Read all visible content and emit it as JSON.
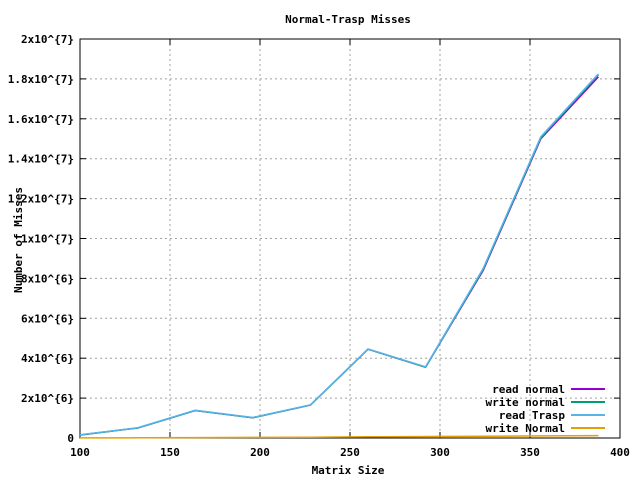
{
  "chart_data": {
    "type": "line",
    "title": "Normal-Trasp Misses",
    "xlabel": "Matrix Size",
    "ylabel": "Number of Misses",
    "xlim": [
      100,
      400
    ],
    "ylim": [
      0,
      20000000
    ],
    "x_ticks": [
      100,
      150,
      200,
      250,
      300,
      350,
      400
    ],
    "y_ticks": [
      {
        "value": 0,
        "label": "0"
      },
      {
        "value": 2000000,
        "label": "2x10^{6}"
      },
      {
        "value": 4000000,
        "label": "4x10^{6}"
      },
      {
        "value": 6000000,
        "label": "6x10^{6}"
      },
      {
        "value": 8000000,
        "label": "8x10^{6}"
      },
      {
        "value": 10000000,
        "label": "1x10^{7}"
      },
      {
        "value": 12000000,
        "label": "1.2x10^{7}"
      },
      {
        "value": 14000000,
        "label": "1.4x10^{7}"
      },
      {
        "value": 16000000,
        "label": "1.6x10^{7}"
      },
      {
        "value": 18000000,
        "label": "1.8x10^{7}"
      },
      {
        "value": 20000000,
        "label": "2x10^{7}"
      }
    ],
    "grid": true,
    "legend_position": "bottom-right",
    "series": [
      {
        "name": "read normal",
        "color": "#9400d3",
        "x": [
          100,
          132,
          164,
          196,
          228,
          244,
          260,
          292,
          324,
          356,
          388
        ],
        "y": [
          150000,
          500000,
          1380000,
          1020000,
          1650000,
          3050000,
          4450000,
          3550000,
          8400000,
          15000000,
          18100000
        ]
      },
      {
        "name": "write normal",
        "color": "#009e73",
        "x": [
          100,
          132,
          164,
          196,
          228,
          244,
          260,
          292,
          324,
          356,
          388
        ],
        "y": [
          150000,
          500000,
          1380000,
          1020000,
          1650000,
          3050000,
          4450000,
          3550000,
          8450000,
          15050000,
          18200000
        ]
      },
      {
        "name": "read Trasp",
        "color": "#56b4e9",
        "x": [
          100,
          132,
          164,
          196,
          228,
          244,
          260,
          292,
          324,
          356,
          388
        ],
        "y": [
          160000,
          510000,
          1390000,
          1030000,
          1660000,
          3060000,
          4460000,
          3570000,
          8500000,
          15100000,
          18250000
        ]
      },
      {
        "name": "write Normal",
        "color": "#e69f00",
        "x": [
          100,
          132,
          164,
          196,
          228,
          244,
          260,
          292,
          324,
          356,
          388
        ],
        "y": [
          5000,
          10000,
          20000,
          30000,
          40000,
          50000,
          60000,
          75000,
          90000,
          105000,
          120000
        ]
      }
    ]
  }
}
